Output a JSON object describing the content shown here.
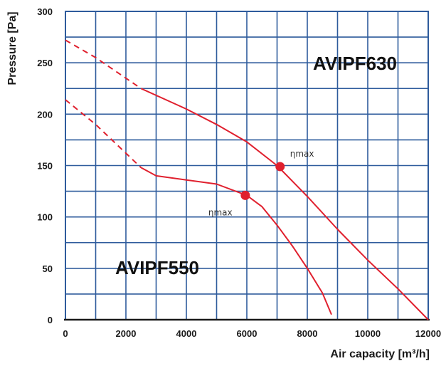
{
  "chart_data": {
    "type": "line",
    "xlabel": "Air capacity [m³/h]",
    "ylabel": "Pressure [Pa]",
    "xlim": [
      0,
      12000
    ],
    "ylim": [
      0,
      300
    ],
    "x_ticks": [
      "0",
      "2000",
      "4000",
      "6000",
      "8000",
      "10000",
      "12000"
    ],
    "y_ticks": [
      "0",
      "50",
      "100",
      "150",
      "200",
      "250",
      "300"
    ],
    "grid": true,
    "colors": {
      "series": "#e0202e",
      "grid": "#2e5b9c"
    },
    "series": [
      {
        "name": "AVIPF630",
        "dashed": [
          [
            0,
            272
          ],
          [
            1000,
            255
          ],
          [
            2500,
            225
          ]
        ],
        "solid": [
          [
            2500,
            225
          ],
          [
            4000,
            205
          ],
          [
            5000,
            190
          ],
          [
            6000,
            173
          ],
          [
            7000,
            150
          ],
          [
            8000,
            120
          ],
          [
            9000,
            88
          ],
          [
            10000,
            58
          ],
          [
            11000,
            30
          ],
          [
            12000,
            0
          ]
        ],
        "max_efficiency": {
          "x": 7100,
          "y": 149,
          "label": "ηmax"
        }
      },
      {
        "name": "AVIPF550",
        "dashed": [
          [
            0,
            214
          ],
          [
            1000,
            190
          ],
          [
            2500,
            148
          ]
        ],
        "solid": [
          [
            2500,
            148
          ],
          [
            3000,
            140
          ],
          [
            4000,
            136
          ],
          [
            5000,
            132
          ],
          [
            6000,
            121
          ],
          [
            6500,
            110
          ],
          [
            7000,
            92
          ],
          [
            7500,
            72
          ],
          [
            8000,
            50
          ],
          [
            8500,
            26
          ],
          [
            8800,
            5
          ]
        ],
        "max_efficiency": {
          "x": 5950,
          "y": 121,
          "label": "ηmax"
        }
      }
    ]
  }
}
